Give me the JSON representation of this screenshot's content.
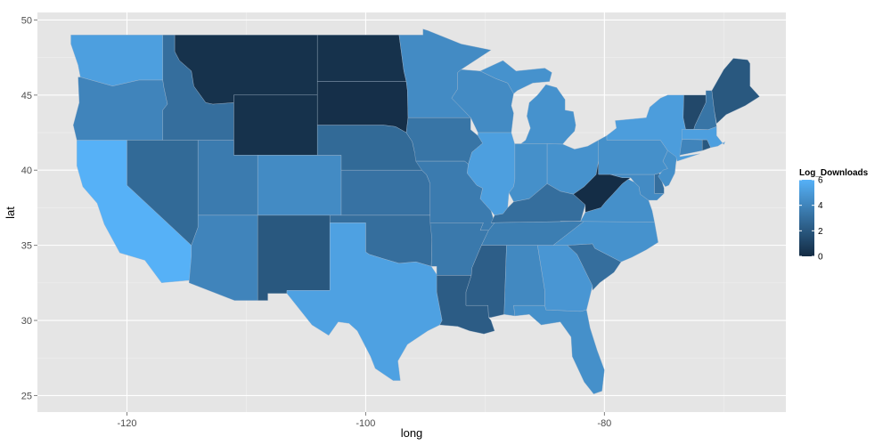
{
  "chart_data": {
    "type": "choropleth",
    "title": "",
    "xlabel": "long",
    "ylabel": "lat",
    "xlim": [
      -127.5,
      -64.8
    ],
    "ylim": [
      23.9,
      50.5
    ],
    "x_ticks": [
      -120,
      -100,
      -80
    ],
    "y_ticks": [
      25,
      30,
      35,
      40,
      45,
      50
    ],
    "x_tick_labels": [
      "-120",
      "-100",
      "-80"
    ],
    "y_tick_labels": [
      "25",
      "30",
      "35",
      "40",
      "45",
      "50"
    ],
    "grid": true,
    "background_color": "#e5e5e5",
    "legend": {
      "title": "Log_Downloads",
      "placement": "right",
      "range": [
        0,
        6
      ],
      "ticks": [
        0,
        2,
        4,
        6
      ],
      "tick_labels": [
        "0",
        "2",
        "4",
        "6"
      ],
      "low_color": "#132B43",
      "high_color": "#56B1F7"
    },
    "states": [
      {
        "name": "Washington",
        "value": 5.2
      },
      {
        "name": "Oregon",
        "value": 4.0
      },
      {
        "name": "California",
        "value": 6.0
      },
      {
        "name": "Idaho",
        "value": 3.0
      },
      {
        "name": "Nevada",
        "value": 2.8
      },
      {
        "name": "Montana",
        "value": 0.3
      },
      {
        "name": "Wyoming",
        "value": 0.3
      },
      {
        "name": "Utah",
        "value": 3.6
      },
      {
        "name": "Arizona",
        "value": 4.0
      },
      {
        "name": "Colorado",
        "value": 4.3
      },
      {
        "name": "New Mexico",
        "value": 2.0
      },
      {
        "name": "North Dakota",
        "value": 0.3
      },
      {
        "name": "South Dakota",
        "value": 0.2
      },
      {
        "name": "Nebraska",
        "value": 2.8
      },
      {
        "name": "Kansas",
        "value": 3.2
      },
      {
        "name": "Oklahoma",
        "value": 3.0
      },
      {
        "name": "Texas",
        "value": 5.3
      },
      {
        "name": "Minnesota",
        "value": 4.3
      },
      {
        "name": "Iowa",
        "value": 3.3
      },
      {
        "name": "Missouri",
        "value": 3.6
      },
      {
        "name": "Arkansas",
        "value": 3.5
      },
      {
        "name": "Louisiana",
        "value": 2.2
      },
      {
        "name": "Wisconsin",
        "value": 4.3
      },
      {
        "name": "Illinois",
        "value": 5.2
      },
      {
        "name": "Michigan",
        "value": 4.6
      },
      {
        "name": "Indiana",
        "value": 4.5
      },
      {
        "name": "Ohio",
        "value": 4.6
      },
      {
        "name": "Kentucky",
        "value": 3.0
      },
      {
        "name": "Tennessee",
        "value": 3.7
      },
      {
        "name": "Mississippi",
        "value": 2.3
      },
      {
        "name": "Alabama",
        "value": 4.2
      },
      {
        "name": "Georgia",
        "value": 4.8
      },
      {
        "name": "Florida",
        "value": 4.5
      },
      {
        "name": "South Carolina",
        "value": 3.0
      },
      {
        "name": "North Carolina",
        "value": 4.6
      },
      {
        "name": "Virginia",
        "value": 4.5
      },
      {
        "name": "West Virginia",
        "value": 0.1
      },
      {
        "name": "Pennsylvania",
        "value": 4.5
      },
      {
        "name": "New York",
        "value": 5.1
      },
      {
        "name": "Maine",
        "value": 2.0
      },
      {
        "name": "Vermont",
        "value": 1.3
      },
      {
        "name": "New Hampshire",
        "value": 3.3
      },
      {
        "name": "Massachusetts",
        "value": 5.2
      },
      {
        "name": "Connecticut",
        "value": 4.0
      },
      {
        "name": "Rhode Island",
        "value": 2.0
      },
      {
        "name": "New Jersey",
        "value": 4.5
      },
      {
        "name": "Delaware",
        "value": 3.0
      },
      {
        "name": "Maryland",
        "value": 4.3
      }
    ]
  }
}
